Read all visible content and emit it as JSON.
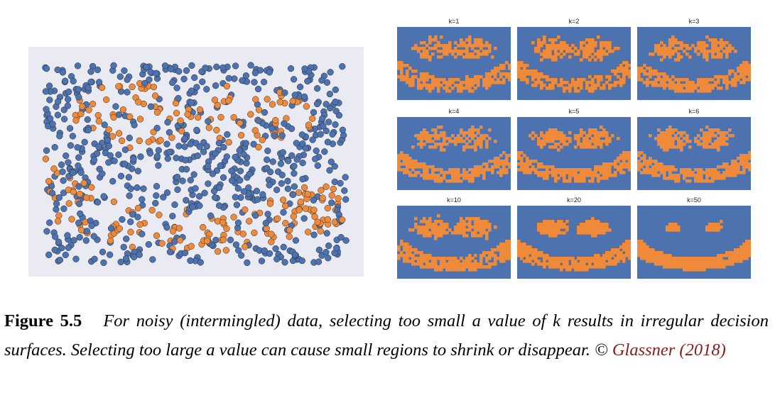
{
  "figure": {
    "label": "Figure 5.5",
    "caption_text": "For noisy (intermingled) data, selecting too small a value of k results in irregular decision surfaces. Selecting too large a value can cause small regions to shrink or disappear. © ",
    "citation": "Glassner (2018)"
  },
  "colors": {
    "class_a": "#4c72b0",
    "class_b": "#ee8a3a",
    "scatter_background": "#eaeaf2",
    "point_edge": "#2a2a2a"
  },
  "chart_data": [
    {
      "type": "scatter",
      "title": "",
      "xlabel": "",
      "ylabel": "",
      "grid": false,
      "axis_ticks": false,
      "xlim": [
        0,
        1
      ],
      "ylim": [
        0,
        1
      ],
      "series": [
        {
          "name": "",
          "color": "#4c72b0",
          "distribution": "uniform noise over whole plane"
        },
        {
          "name": "",
          "color": "#ee8a3a",
          "distribution": "smiley face: two eyes and mouth arc, intermingled with blue"
        }
      ]
    },
    {
      "type": "heatmap",
      "description": "kNN decision regions for increasing k",
      "panels": [
        {
          "title": "k=1",
          "k": 1
        },
        {
          "title": "k=2",
          "k": 2
        },
        {
          "title": "k=3",
          "k": 3
        },
        {
          "title": "k=4",
          "k": 4
        },
        {
          "title": "k=5",
          "k": 5
        },
        {
          "title": "k=6",
          "k": 6
        },
        {
          "title": "k=10",
          "k": 10
        },
        {
          "title": "k=20",
          "k": 20
        },
        {
          "title": "k=50",
          "k": 50
        }
      ]
    }
  ]
}
